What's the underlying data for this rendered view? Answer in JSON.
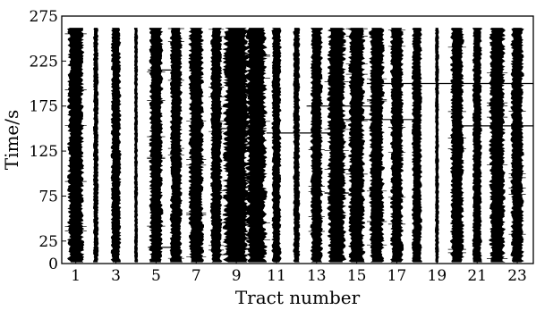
{
  "chart_data": {
    "type": "seismic-wiggle",
    "xlabel": "Tract number",
    "ylabel": "Time/s",
    "x_ticks": [
      1,
      3,
      5,
      7,
      9,
      11,
      13,
      15,
      17,
      19,
      21,
      23
    ],
    "x_tick_labels": [
      "1",
      "3",
      "5",
      "7",
      "9",
      "11",
      "13",
      "15",
      "17",
      "19",
      "21",
      "23"
    ],
    "y_ticks": [
      0,
      25,
      75,
      125,
      175,
      225,
      275
    ],
    "y_tick_labels": [
      "0",
      "25",
      "75",
      "125",
      "175",
      "225",
      "275"
    ],
    "xlim": [
      0.3,
      23.8
    ],
    "ylim": [
      0,
      275
    ],
    "record_length_s": 262,
    "grid": false,
    "colors": {
      "trace": "#000000",
      "background": "#ffffff"
    },
    "traces": [
      {
        "tract": 1,
        "amplitude": 0.42
      },
      {
        "tract": 2,
        "amplitude": 0.1
      },
      {
        "tract": 3,
        "amplitude": 0.24
      },
      {
        "tract": 4,
        "amplitude": 0.05
      },
      {
        "tract": 5,
        "amplitude": 0.34
      },
      {
        "tract": 6,
        "amplitude": 0.3
      },
      {
        "tract": 7,
        "amplitude": 0.38
      },
      {
        "tract": 8,
        "amplitude": 0.28
      },
      {
        "tract": 9,
        "amplitude": 0.72
      },
      {
        "tract": 10,
        "amplitude": 0.55
      },
      {
        "tract": 11,
        "amplitude": 0.22
      },
      {
        "tract": 12,
        "amplitude": 0.14
      },
      {
        "tract": 13,
        "amplitude": 0.3
      },
      {
        "tract": 14,
        "amplitude": 0.48
      },
      {
        "tract": 15,
        "amplitude": 0.42
      },
      {
        "tract": 16,
        "amplitude": 0.38
      },
      {
        "tract": 17,
        "amplitude": 0.32
      },
      {
        "tract": 18,
        "amplitude": 0.24
      },
      {
        "tract": 19,
        "amplitude": 0.06
      },
      {
        "tract": 20,
        "amplitude": 0.34
      },
      {
        "tract": 21,
        "amplitude": 0.22
      },
      {
        "tract": 22,
        "amplitude": 0.4
      },
      {
        "tract": 23,
        "amplitude": 0.32
      }
    ],
    "events": [
      {
        "tract_from": 4.6,
        "tract_to": 5.9,
        "time": 215
      },
      {
        "tract_from": 4.6,
        "tract_to": 5.9,
        "time": 18
      },
      {
        "tract_from": 8,
        "tract_to": 10.5,
        "time": 150
      },
      {
        "tract_from": 10.5,
        "tract_to": 14,
        "time": 145
      },
      {
        "tract_from": 14,
        "tract_to": 18,
        "time": 160
      },
      {
        "tract_from": 15.5,
        "tract_to": 23.8,
        "time": 200
      },
      {
        "tract_from": 20,
        "tract_to": 23.8,
        "time": 153
      },
      {
        "tract_from": 12.5,
        "tract_to": 16,
        "time": 175
      }
    ]
  }
}
